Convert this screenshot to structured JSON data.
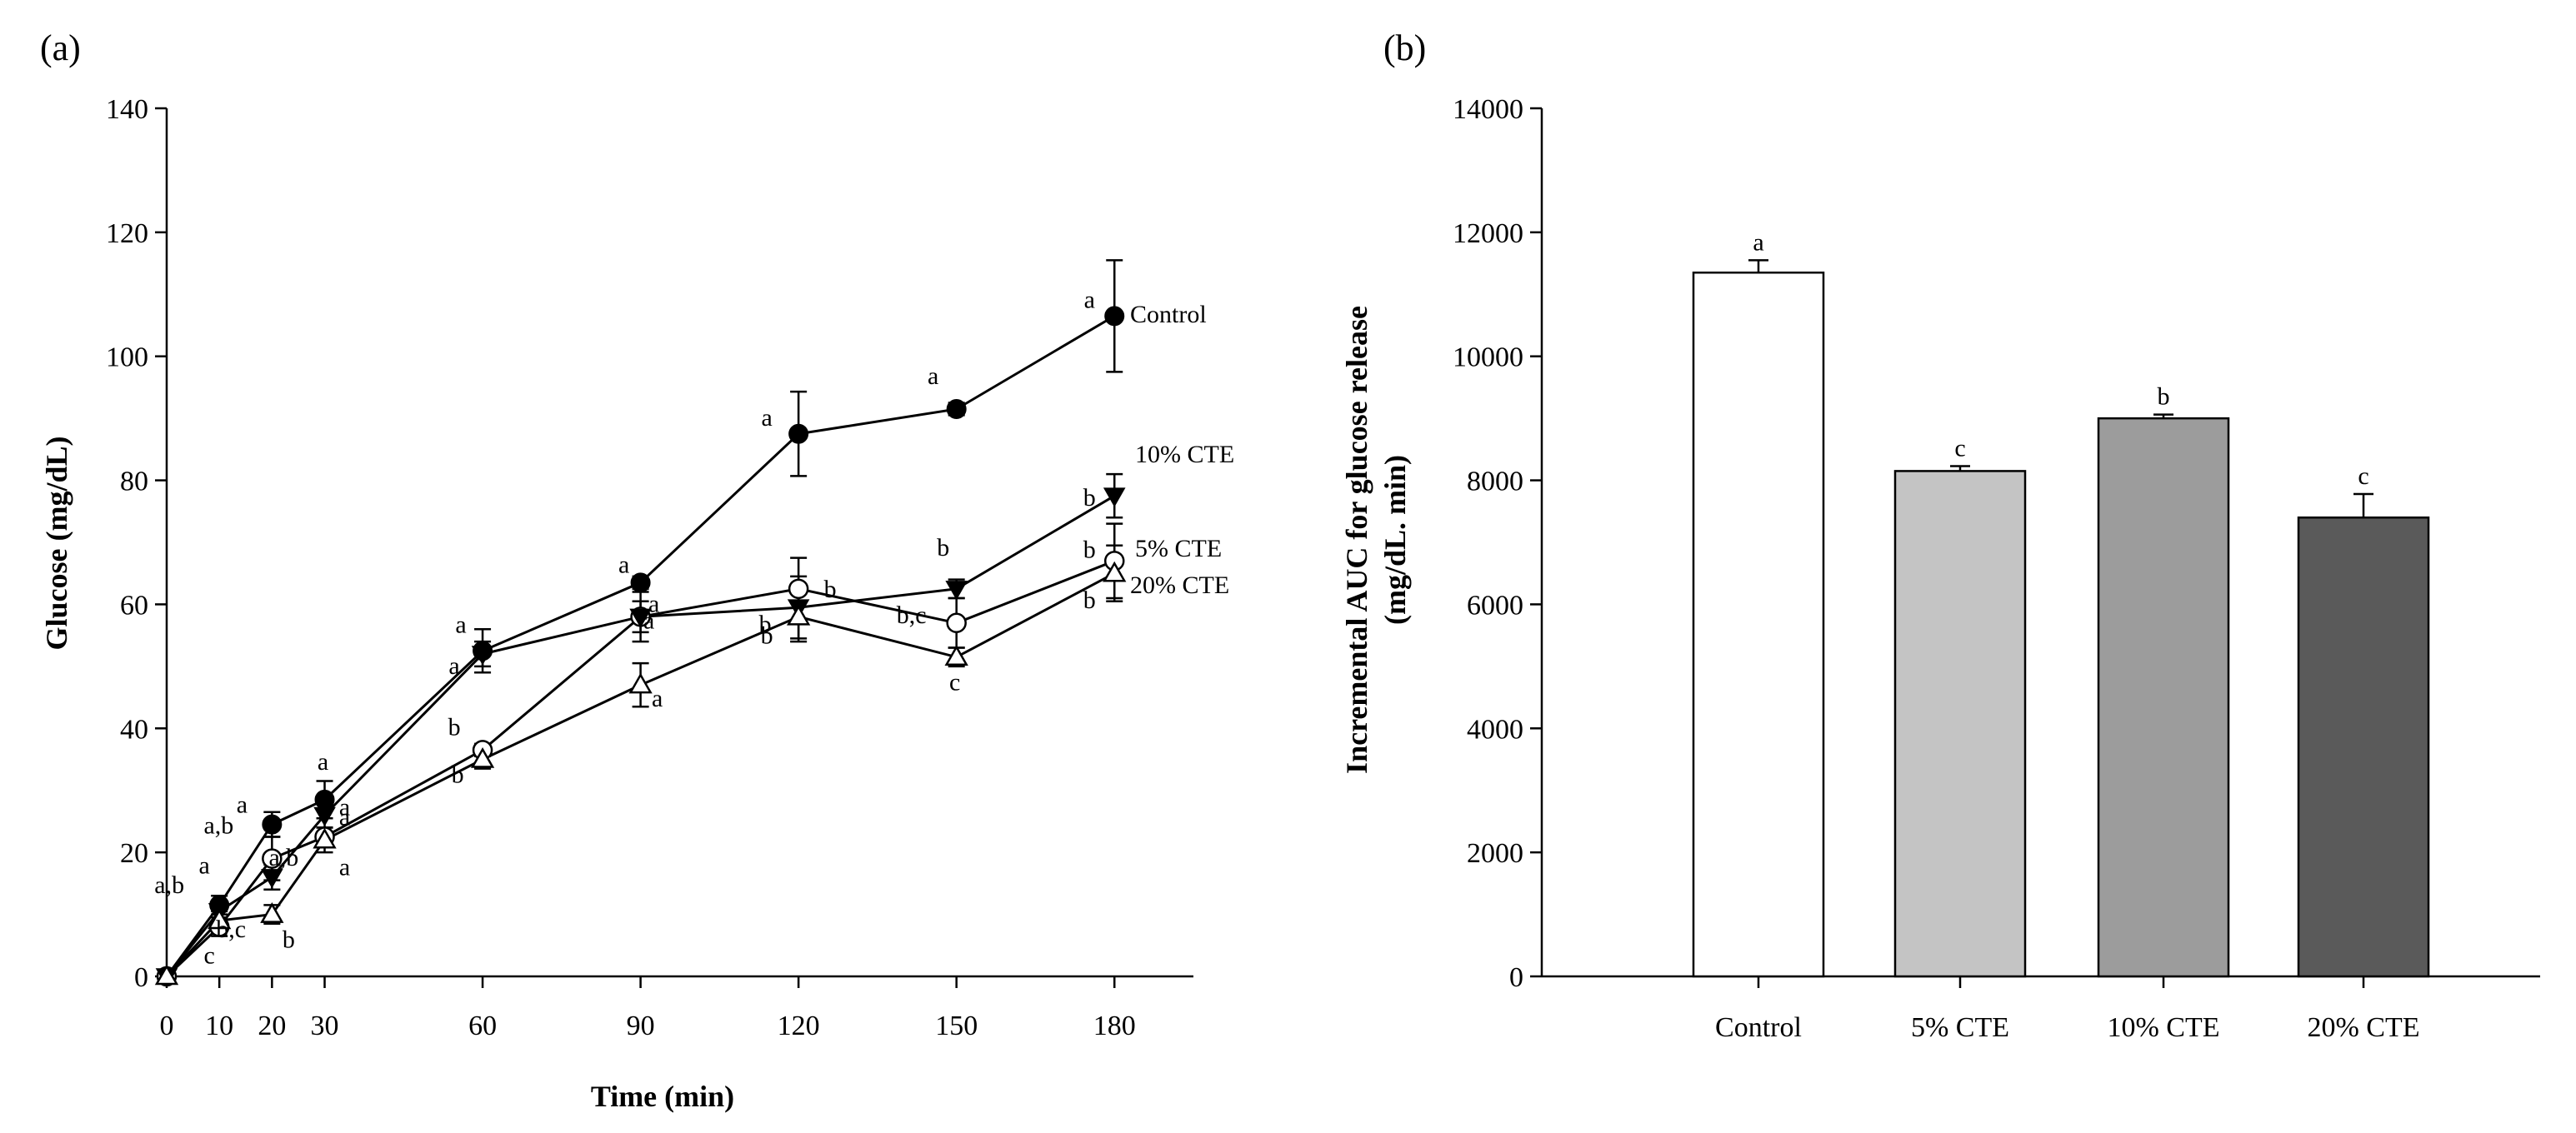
{
  "chart_data": [
    {
      "type": "line",
      "panel_label": "(a)",
      "xlabel": "Time (min)",
      "ylabel": "Glucose (mg/dL)",
      "xlim": [
        0,
        195
      ],
      "ylim": [
        0,
        140
      ],
      "x_ticks": [
        0,
        10,
        20,
        30,
        60,
        90,
        120,
        150,
        180
      ],
      "y_ticks": [
        0,
        20,
        40,
        60,
        80,
        100,
        120,
        140
      ],
      "x": [
        0,
        10,
        20,
        30,
        60,
        90,
        120,
        150,
        180
      ],
      "series": [
        {
          "name": "Control",
          "marker": "filled-circle",
          "values": [
            0,
            11.5,
            24.5,
            28.5,
            52.5,
            63.5,
            87.5,
            91.5,
            106.5
          ],
          "errors": [
            0,
            1.5,
            2,
            3,
            3.5,
            1,
            6.8,
            1,
            9
          ],
          "letters": [
            "",
            "a",
            "a",
            "a",
            "a",
            "a",
            "a",
            "a",
            "a"
          ]
        },
        {
          "name": "5% CTE",
          "marker": "open-circle",
          "values": [
            0,
            8,
            19,
            22.5,
            36.5,
            58,
            62.5,
            57,
            67
          ],
          "errors": [
            0,
            1.5,
            3.5,
            1.5,
            1,
            4,
            5,
            4,
            6
          ],
          "letters": [
            "",
            "c",
            "a,b",
            "a",
            "b",
            "a",
            "b",
            "b,c",
            "b"
          ]
        },
        {
          "name": "10% CTE",
          "marker": "filled-triangle-down",
          "values": [
            0,
            10.5,
            16,
            26,
            52,
            58,
            59.5,
            62.5,
            77.5
          ],
          "errors": [
            0,
            1.5,
            2,
            2,
            2,
            2.5,
            5,
            1.5,
            3.5
          ],
          "letters": [
            "",
            "a,b",
            "a,b",
            "a",
            "a",
            "a",
            "b",
            "b",
            "b"
          ]
        },
        {
          "name": "20% CTE",
          "marker": "open-triangle-up",
          "values": [
            0,
            9,
            10,
            22,
            35,
            47,
            58,
            51.5,
            65
          ],
          "errors": [
            0,
            1.5,
            1.5,
            2,
            1.5,
            3.5,
            4,
            1.5,
            4.5
          ],
          "letters": [
            "",
            "b,c",
            "b",
            "a",
            "b",
            "a",
            "b",
            "c",
            "b"
          ]
        }
      ]
    },
    {
      "type": "bar",
      "panel_label": "(b)",
      "xlabel": "",
      "ylabel_lines": [
        "Incremental AUC for glucose release",
        "(mg/dL. min)"
      ],
      "ylim": [
        0,
        14000
      ],
      "y_ticks": [
        0,
        2000,
        4000,
        6000,
        8000,
        10000,
        12000,
        14000
      ],
      "categories": [
        "Control",
        "5% CTE",
        "10% CTE",
        "20% CTE"
      ],
      "values": [
        11350,
        8150,
        9000,
        7400
      ],
      "errors": [
        200,
        80,
        60,
        380
      ],
      "letters": [
        "a",
        "c",
        "b",
        "c"
      ],
      "colors": [
        "#ffffff",
        "#c4c4c4",
        "#9c9c9c",
        "#5a5a5a"
      ]
    }
  ]
}
